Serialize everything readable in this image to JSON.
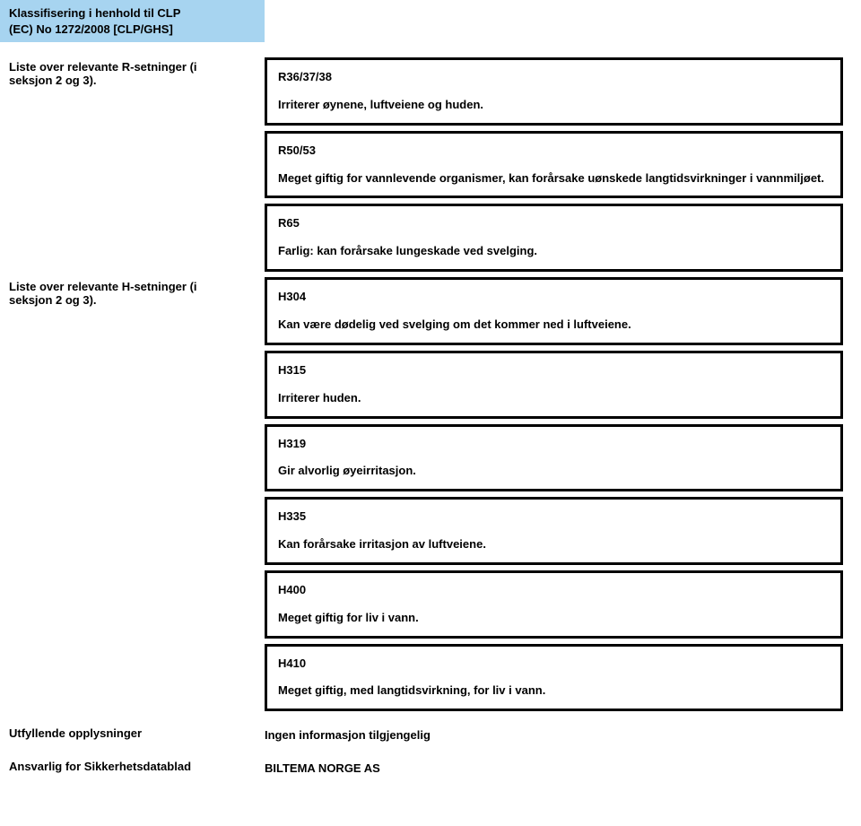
{
  "header": {
    "line1": "Klassifisering i henhold til CLP",
    "line2": "(EC) No 1272/2008 [CLP/GHS]"
  },
  "r_section": {
    "title_line1": "Liste over relevante R-setninger (i",
    "title_line2": "seksjon 2 og 3).",
    "boxes": [
      {
        "code": "R36/37/38",
        "text": "Irriterer øynene, luftveiene og huden."
      },
      {
        "code": "R50/53",
        "text": "Meget giftig for vannlevende organismer, kan forårsake uønskede langtidsvirkninger i vannmiljøet."
      },
      {
        "code": "R65",
        "text": "Farlig: kan forårsake lungeskade ved svelging."
      }
    ]
  },
  "h_section": {
    "title_line1": "Liste over relevante H-setninger (i",
    "title_line2": "seksjon 2 og 3).",
    "boxes": [
      {
        "code": "H304",
        "text": "Kan være dødelig ved svelging om det kommer ned i luftveiene."
      },
      {
        "code": "H315",
        "text": "Irriterer huden."
      },
      {
        "code": "H319",
        "text": "Gir alvorlig øyeirritasjon."
      },
      {
        "code": "H335",
        "text": "Kan forårsake irritasjon av luftveiene."
      },
      {
        "code": "H400",
        "text": "Meget giftig for liv i vann."
      },
      {
        "code": "H410",
        "text": "Meget giftig, med langtidsvirkning, for liv i vann."
      }
    ]
  },
  "footer": {
    "field1_label": "Utfyllende opplysninger",
    "field1_value": "Ingen informasjon tilgjengelig",
    "field2_label": "Ansvarlig for Sikkerhetsdatablad",
    "field2_value": "BILTEMA NORGE AS"
  }
}
